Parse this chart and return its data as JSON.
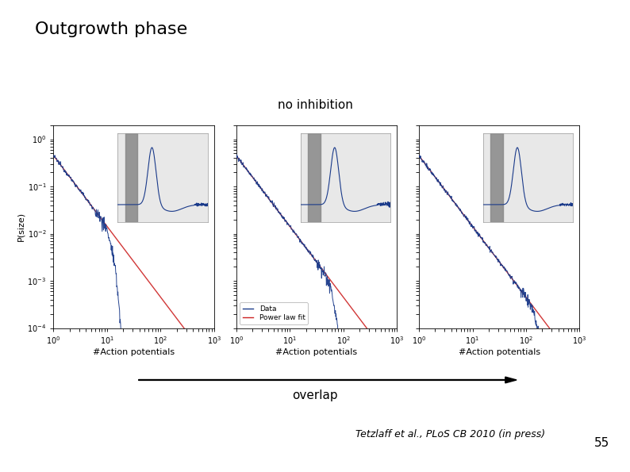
{
  "title": "Outgrowth phase",
  "subtitle": "no inhibition",
  "overlap_label": "overlap",
  "citation": "Tetzlaff et al., PLoS CB 2010 (in press)",
  "slide_number": "55",
  "xlabel": "#Action potentials",
  "ylabel": "P(size)",
  "legend_data": "Data",
  "legend_powerlaw": "Power law fit",
  "data_color": "#1a3a8a",
  "powerlaw_color": "#cc2222",
  "background_color": "#ffffff",
  "title_fontsize": 16,
  "subtitle_fontsize": 11,
  "axis_label_fontsize": 8,
  "tick_fontsize": 7,
  "citation_fontsize": 9,
  "overlap_fontsize": 11,
  "slide_number_fontsize": 11,
  "cutoffs": [
    15,
    80,
    200
  ],
  "power_slope": -1.5,
  "power_amplitude": 0.45
}
